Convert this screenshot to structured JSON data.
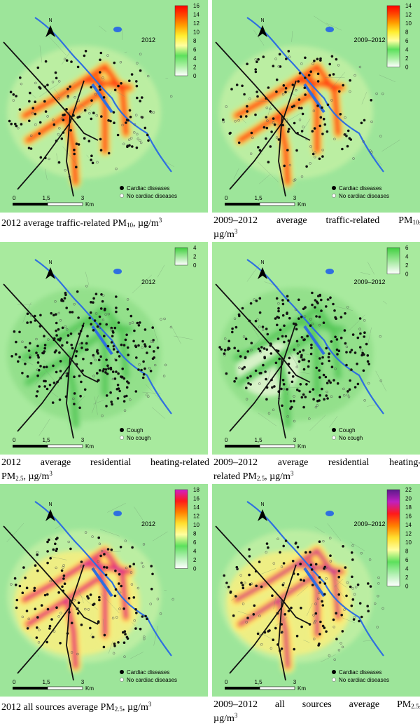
{
  "north_label": "N",
  "scalebar": {
    "ticks": [
      "0",
      "1,5",
      "3"
    ],
    "unit": "Km"
  },
  "panels": [
    {
      "year": "2012",
      "legend_ticks": [
        "16",
        "14",
        "12",
        "10",
        "8",
        "6",
        "4",
        "2",
        "0"
      ],
      "scale": "traffic",
      "points_on": "Cardiac diseases",
      "points_off": "No cardiac diseases",
      "caption_main": "2012 average traffic-related PM",
      "caption_sub": "10",
      "caption_unit": ", µg/m",
      "caption_sup": "3"
    },
    {
      "year": "2009–2012",
      "legend_ticks": [
        "14",
        "12",
        "10",
        "8",
        "6",
        "4",
        "2",
        "0"
      ],
      "scale": "traffic",
      "points_on": "Cardiac diseases",
      "points_off": "No cardiac diseases",
      "caption_main": "2009–2012 average traffic-related PM",
      "caption_sub": "10",
      "caption_unit": ",",
      "caption_line2": "µg/m",
      "caption_sup": "3"
    },
    {
      "year": "2012",
      "legend_ticks": [
        "4",
        "2",
        "0"
      ],
      "scale": "heating",
      "points_on": "Cough",
      "points_off": "No cough",
      "caption_main": "2012 average residential heating-related",
      "caption_line2": "PM",
      "caption_sub": "2.5",
      "caption_unit": ", µg/m",
      "caption_sup": "3"
    },
    {
      "year": "2009–2012",
      "legend_ticks": [
        "6",
        "4",
        "2",
        "0"
      ],
      "scale": "heating",
      "points_on": "Cough",
      "points_off": "No cough",
      "caption_main": "2009–2012 average residential heating-",
      "caption_line2": "related PM",
      "caption_sub": "2.5",
      "caption_unit": ", µg/m",
      "caption_sup": "3"
    },
    {
      "year": "2012",
      "legend_ticks": [
        "18",
        "16",
        "14",
        "12",
        "10",
        "8",
        "6",
        "4",
        "2",
        "0"
      ],
      "scale": "all",
      "points_on": "Cardiac diseases",
      "points_off": "No cardiac diseases",
      "caption_main": "2012 all sources average PM",
      "caption_sub": "2.5",
      "caption_unit": ", µg/m",
      "caption_sup": "3"
    },
    {
      "year": "2009–2012",
      "legend_ticks": [
        "22",
        "20",
        "18",
        "16",
        "14",
        "12",
        "10",
        "8",
        "6",
        "4",
        "2",
        "0"
      ],
      "scale": "all22",
      "points_on": "Cardiac diseases",
      "points_off": "No cardiac diseases",
      "caption_main": "2009–2012 all sources average PM",
      "caption_sub": "2.5",
      "caption_unit": ",",
      "caption_line2": "µg/m",
      "caption_sup": "3"
    }
  ]
}
